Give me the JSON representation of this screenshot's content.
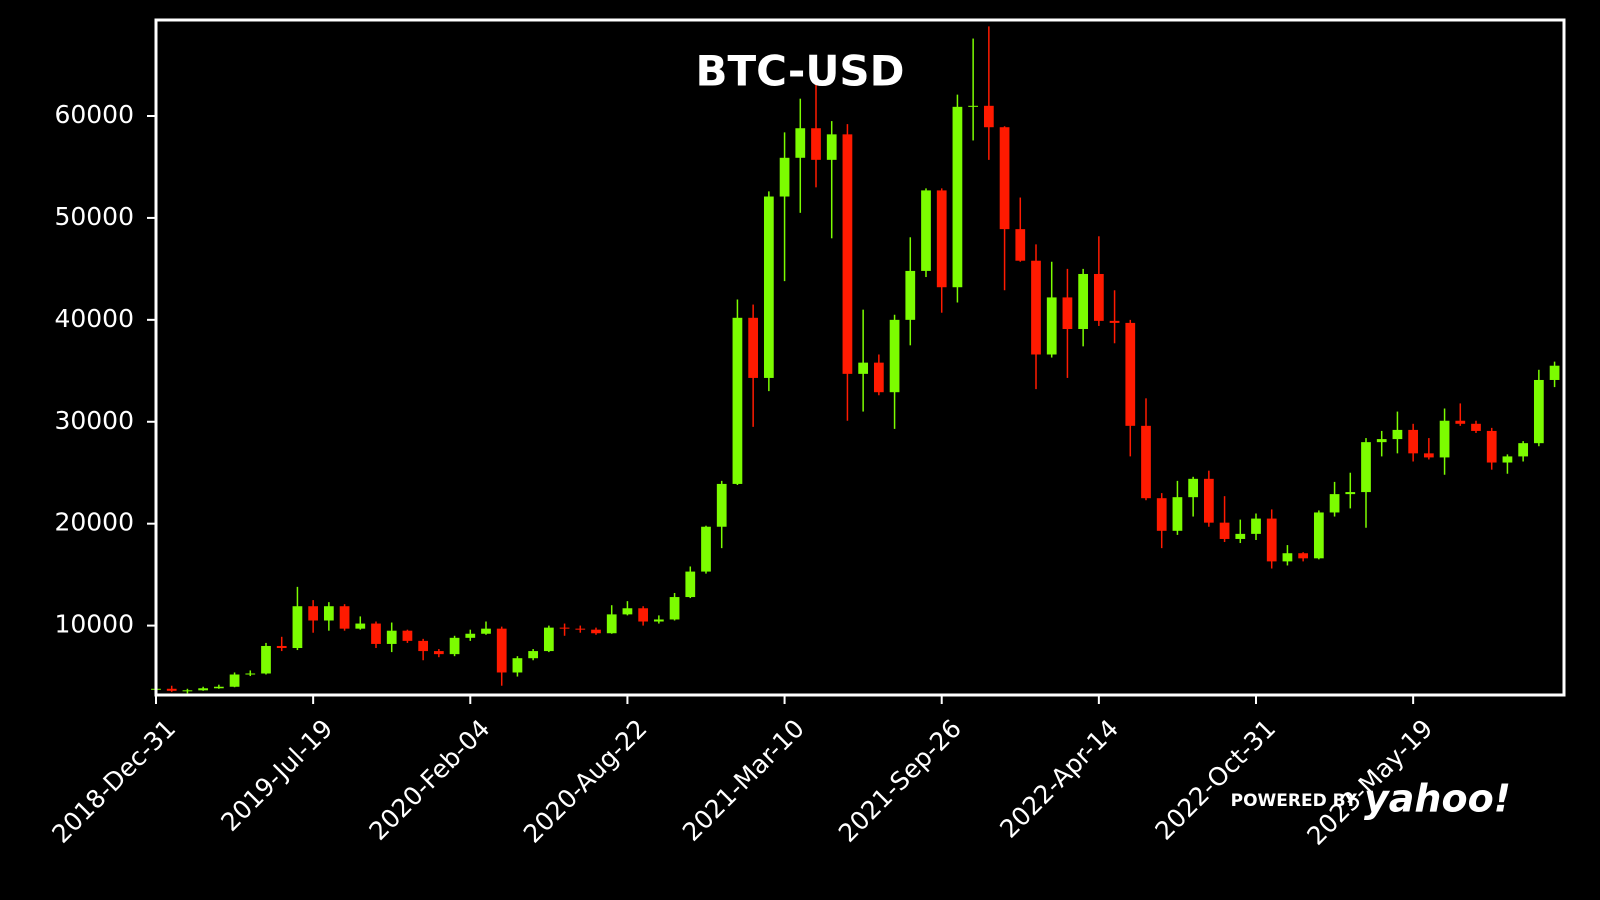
{
  "chart_data": {
    "type": "candlestick",
    "title": "BTC-USD",
    "watermark": {
      "prefix": "POWERED BY",
      "brand": "yahoo!"
    },
    "up_color": "#7cfc00",
    "down_color": "#ff1a00",
    "frame_color": "#ffffff",
    "xlim": [
      0,
      1792
    ],
    "ylim": [
      3190,
      69420
    ],
    "yticks": [
      10000,
      20000,
      30000,
      40000,
      50000,
      60000
    ],
    "xticks": [
      {
        "value": 0,
        "label": "2018-Dec-31"
      },
      {
        "value": 200,
        "label": "2019-Jul-19"
      },
      {
        "value": 400,
        "label": "2020-Feb-04"
      },
      {
        "value": 600,
        "label": "2020-Aug-22"
      },
      {
        "value": 800,
        "label": "2021-Mar-10"
      },
      {
        "value": 1000,
        "label": "2021-Sep-26"
      },
      {
        "value": 1200,
        "label": "2022-Apr-14"
      },
      {
        "value": 1400,
        "label": "2022-Oct-31"
      },
      {
        "value": 1600,
        "label": "2023-May-19"
      }
    ],
    "x": [
      0,
      20,
      40,
      60,
      80,
      100,
      120,
      140,
      160,
      180,
      200,
      220,
      240,
      260,
      280,
      300,
      320,
      340,
      360,
      380,
      400,
      420,
      440,
      460,
      480,
      500,
      520,
      540,
      560,
      580,
      600,
      620,
      640,
      660,
      680,
      700,
      720,
      740,
      760,
      780,
      800,
      820,
      840,
      860,
      880,
      900,
      920,
      940,
      960,
      980,
      1000,
      1020,
      1040,
      1060,
      1080,
      1100,
      1120,
      1140,
      1160,
      1180,
      1200,
      1220,
      1240,
      1260,
      1280,
      1300,
      1320,
      1340,
      1360,
      1380,
      1400,
      1420,
      1440,
      1460,
      1480,
      1500,
      1520,
      1540,
      1560,
      1580,
      1600,
      1620,
      1640,
      1660,
      1680,
      1700,
      1720,
      1740,
      1760,
      1780
    ],
    "ohlc": [
      [
        3700,
        3900,
        3400,
        3800
      ],
      [
        3800,
        4100,
        3500,
        3600
      ],
      [
        3600,
        3800,
        3350,
        3650
      ],
      [
        3650,
        4000,
        3600,
        3850
      ],
      [
        3850,
        4200,
        3800,
        4000
      ],
      [
        4000,
        5400,
        3950,
        5200
      ],
      [
        5200,
        5600,
        5050,
        5300
      ],
      [
        5300,
        8300,
        5200,
        8000
      ],
      [
        8000,
        8900,
        7500,
        7800
      ],
      [
        7800,
        13800,
        7600,
        11900
      ],
      [
        11900,
        12500,
        9300,
        10500
      ],
      [
        10500,
        12300,
        9500,
        11900
      ],
      [
        11900,
        12100,
        9500,
        9700
      ],
      [
        9700,
        10900,
        9600,
        10200
      ],
      [
        10200,
        10400,
        7800,
        8200
      ],
      [
        8200,
        10300,
        7400,
        9500
      ],
      [
        9500,
        9600,
        8300,
        8500
      ],
      [
        8500,
        8700,
        6600,
        7500
      ],
      [
        7500,
        7700,
        6900,
        7200
      ],
      [
        7200,
        9000,
        7000,
        8800
      ],
      [
        8800,
        9600,
        8500,
        9200
      ],
      [
        9200,
        10400,
        9100,
        9700
      ],
      [
        9700,
        9900,
        4100,
        5400
      ],
      [
        5400,
        7000,
        5000,
        6800
      ],
      [
        6800,
        7700,
        6600,
        7500
      ],
      [
        7500,
        10000,
        7400,
        9800
      ],
      [
        9800,
        10200,
        9000,
        9700
      ],
      [
        9700,
        10000,
        9300,
        9600
      ],
      [
        9600,
        9800,
        9100,
        9250
      ],
      [
        9250,
        12000,
        9200,
        11100
      ],
      [
        11100,
        12400,
        11000,
        11700
      ],
      [
        11700,
        11900,
        10000,
        10400
      ],
      [
        10400,
        11000,
        10200,
        10600
      ],
      [
        10600,
        13200,
        10500,
        12800
      ],
      [
        12800,
        15800,
        12700,
        15300
      ],
      [
        15300,
        19800,
        15100,
        19700
      ],
      [
        19700,
        24200,
        17600,
        23900
      ],
      [
        23900,
        42000,
        23800,
        40200
      ],
      [
        40200,
        41500,
        29500,
        34300
      ],
      [
        34300,
        52600,
        33000,
        52100
      ],
      [
        52100,
        58400,
        43800,
        55900
      ],
      [
        55900,
        61700,
        50500,
        58800
      ],
      [
        58800,
        64800,
        53000,
        55700
      ],
      [
        55700,
        59500,
        48000,
        58200
      ],
      [
        58200,
        59200,
        30100,
        34700
      ],
      [
        34700,
        41000,
        31000,
        35800
      ],
      [
        35800,
        36600,
        32600,
        32900
      ],
      [
        32900,
        40500,
        29300,
        40000
      ],
      [
        40000,
        48100,
        37500,
        44800
      ],
      [
        44800,
        52900,
        44200,
        52700
      ],
      [
        52700,
        52900,
        40700,
        43200
      ],
      [
        43200,
        62100,
        41700,
        60900
      ],
      [
        60900,
        67600,
        57600,
        61000
      ],
      [
        61000,
        68800,
        55700,
        58900
      ],
      [
        58900,
        59000,
        42900,
        48900
      ],
      [
        48900,
        52000,
        45700,
        45800
      ],
      [
        45800,
        47400,
        33200,
        36600
      ],
      [
        36600,
        45700,
        36300,
        42200
      ],
      [
        42200,
        45000,
        34300,
        39100
      ],
      [
        39100,
        45000,
        37400,
        44500
      ],
      [
        44500,
        48200,
        39400,
        39900
      ],
      [
        39900,
        42900,
        37700,
        39700
      ],
      [
        39700,
        40000,
        26600,
        29600
      ],
      [
        29600,
        32300,
        22300,
        22500
      ],
      [
        22500,
        23000,
        17600,
        19300
      ],
      [
        19300,
        24200,
        18900,
        22600
      ],
      [
        22600,
        24600,
        20700,
        24400
      ],
      [
        24400,
        25200,
        19700,
        20100
      ],
      [
        20100,
        22700,
        18200,
        18500
      ],
      [
        18500,
        20400,
        18100,
        19000
      ],
      [
        19000,
        21000,
        18400,
        20500
      ],
      [
        20500,
        21400,
        15600,
        16300
      ],
      [
        16300,
        17900,
        15900,
        17100
      ],
      [
        17100,
        17200,
        16300,
        16600
      ],
      [
        16600,
        21300,
        16500,
        21100
      ],
      [
        21100,
        24100,
        20700,
        22900
      ],
      [
        22900,
        25000,
        21500,
        23100
      ],
      [
        23100,
        28400,
        19600,
        28000
      ],
      [
        28000,
        29100,
        26600,
        28300
      ],
      [
        28300,
        31000,
        26900,
        29200
      ],
      [
        29200,
        29800,
        26100,
        26900
      ],
      [
        26900,
        28400,
        26300,
        26500
      ],
      [
        26500,
        31300,
        24800,
        30100
      ],
      [
        30100,
        31800,
        29600,
        29800
      ],
      [
        29800,
        30100,
        28900,
        29100
      ],
      [
        29100,
        29400,
        25300,
        26000
      ],
      [
        26000,
        26800,
        24900,
        26600
      ],
      [
        26600,
        28100,
        26100,
        27900
      ],
      [
        27900,
        35100,
        27600,
        34100
      ],
      [
        34100,
        35900,
        33400,
        35500
      ]
    ]
  }
}
